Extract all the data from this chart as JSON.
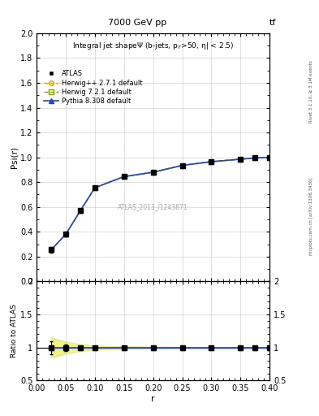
{
  "title_top": "7000 GeV pp",
  "title_top_right": "tf",
  "right_label": "mcplots.cern.ch [arXiv:1306.3436]",
  "right_label2": "Rivet 3.1.10, ≥ 3.1M events",
  "main_title": "Integral jet shapeΨ (b-jets, p_{T}>50, η| < 2.5)",
  "watermark": "ATLAS_2013_I1243871",
  "ylabel_main": "Psi(r)",
  "ylabel_ratio": "Ratio to ATLAS",
  "xlabel": "r",
  "xlim": [
    0.0,
    0.4
  ],
  "ylim_main": [
    0.0,
    2.0
  ],
  "ylim_ratio": [
    0.5,
    2.0
  ],
  "atlas_r": [
    0.025,
    0.05,
    0.075,
    0.1,
    0.15,
    0.2,
    0.25,
    0.3,
    0.35,
    0.375,
    0.4
  ],
  "atlas_y": [
    0.255,
    0.38,
    0.57,
    0.755,
    0.845,
    0.88,
    0.935,
    0.965,
    0.985,
    0.995,
    1.0
  ],
  "atlas_err": [
    0.025,
    0.018,
    0.015,
    0.012,
    0.01,
    0.008,
    0.006,
    0.005,
    0.004,
    0.003,
    0.002
  ],
  "herwig_pp_color": "#e8a000",
  "herwig7_color": "#80a000",
  "pythia_color": "#2244cc",
  "atlas_color": "#000000",
  "herwig_pp_band": [
    0.12,
    0.07,
    0.04,
    0.025,
    0.015,
    0.01,
    0.007,
    0.005,
    0.004,
    0.003,
    0.002
  ],
  "herwig7_band": [
    0.15,
    0.09,
    0.05,
    0.03,
    0.018,
    0.012,
    0.008,
    0.006,
    0.004,
    0.003,
    0.002
  ],
  "background_color": "#ffffff"
}
